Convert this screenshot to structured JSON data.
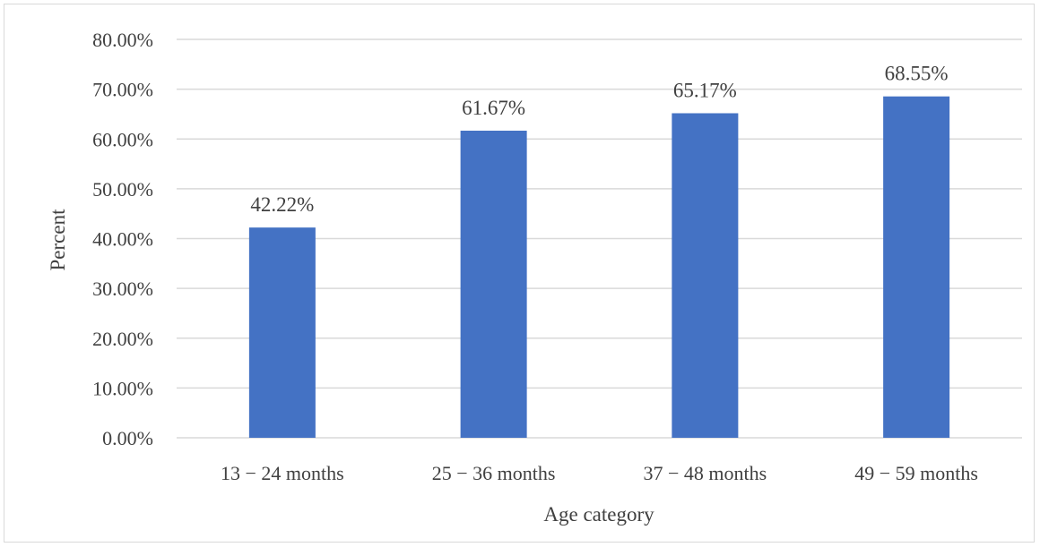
{
  "chart_data": {
    "type": "bar",
    "title": "",
    "categories": [
      "13 − 24 months",
      "25 − 36 months",
      "37 − 48 months",
      "49 − 59 months"
    ],
    "values": [
      42.22,
      61.67,
      65.17,
      68.55
    ],
    "data_labels": [
      "42.22%",
      "61.67%",
      "65.17%",
      "68.55%"
    ],
    "xlabel": "Age category",
    "ylabel": "Percent",
    "ylim": [
      0,
      80
    ],
    "yticks": [
      0,
      10,
      20,
      30,
      40,
      50,
      60,
      70,
      80
    ],
    "ytick_labels": [
      "0.00%",
      "10.00%",
      "20.00%",
      "30.00%",
      "40.00%",
      "50.00%",
      "60.00%",
      "70.00%",
      "80.00%"
    ],
    "grid": true,
    "legend": "none",
    "bar_color": "#4472c4",
    "grid_color": "#d9d9d9",
    "text_color": "#404040"
  }
}
